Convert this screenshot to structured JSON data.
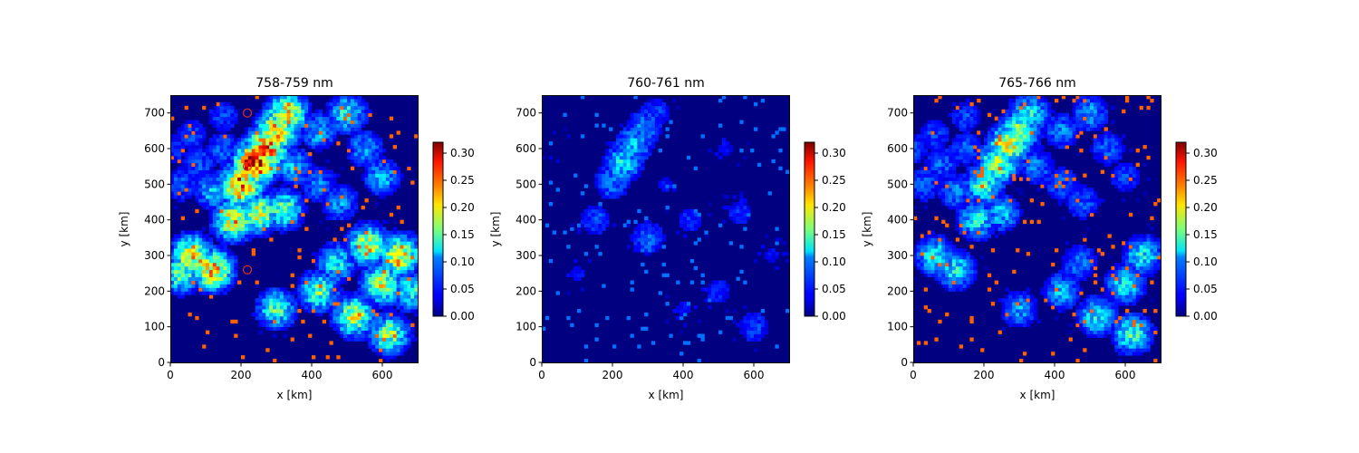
{
  "chart_data": [
    {
      "type": "heatmap",
      "title": "758-759 nm",
      "xlabel": "x [km]",
      "ylabel": "y [km]",
      "xlim": [
        0,
        700
      ],
      "ylim": [
        0,
        750
      ],
      "x_ticks": [
        "0",
        "200",
        "400",
        "600"
      ],
      "y_ticks": [
        "0",
        "100",
        "200",
        "300",
        "400",
        "500",
        "600",
        "700"
      ],
      "colorbar": {
        "min": 0.0,
        "max": 0.32,
        "colormap": "jet",
        "ticks": [
          "0.00",
          "0.05",
          "0.10",
          "0.15",
          "0.20",
          "0.25",
          "0.30"
        ]
      },
      "markers": [
        {
          "x": 218,
          "y": 700,
          "shape": "circle",
          "color": "#e0301e"
        },
        {
          "x": 218,
          "y": 550,
          "shape": "circle",
          "color": "#e0301e"
        },
        {
          "x": 218,
          "y": 260,
          "shape": "circle",
          "color": "#e0301e"
        }
      ],
      "features": [
        {
          "x": 0,
          "y": 600,
          "value": 0.06
        },
        {
          "x": 60,
          "y": 640,
          "value": 0.06
        },
        {
          "x": 150,
          "y": 690,
          "value": 0.06
        },
        {
          "x": 80,
          "y": 560,
          "value": 0.07
        },
        {
          "x": 150,
          "y": 600,
          "value": 0.07
        },
        {
          "x": 30,
          "y": 500,
          "value": 0.07
        },
        {
          "x": 120,
          "y": 480,
          "value": 0.1
        },
        {
          "x": 350,
          "y": 550,
          "value": 0.1
        },
        {
          "x": 420,
          "y": 500,
          "value": 0.08
        },
        {
          "x": 480,
          "y": 450,
          "value": 0.09
        },
        {
          "x": 420,
          "y": 650,
          "value": 0.1
        },
        {
          "x": 500,
          "y": 700,
          "value": 0.12
        },
        {
          "x": 550,
          "y": 600,
          "value": 0.09
        },
        {
          "x": 600,
          "y": 520,
          "value": 0.1
        },
        {
          "x": 240,
          "y": 560,
          "value": 0.3
        },
        {
          "x": 270,
          "y": 600,
          "value": 0.26
        },
        {
          "x": 300,
          "y": 650,
          "value": 0.22
        },
        {
          "x": 200,
          "y": 500,
          "value": 0.25
        },
        {
          "x": 330,
          "y": 700,
          "value": 0.2
        },
        {
          "x": 250,
          "y": 420,
          "value": 0.18
        },
        {
          "x": 320,
          "y": 430,
          "value": 0.15
        },
        {
          "x": 180,
          "y": 400,
          "value": 0.2
        },
        {
          "x": 60,
          "y": 300,
          "value": 0.2
        },
        {
          "x": 120,
          "y": 260,
          "value": 0.22
        },
        {
          "x": 30,
          "y": 250,
          "value": 0.15
        },
        {
          "x": 420,
          "y": 200,
          "value": 0.15
        },
        {
          "x": 520,
          "y": 130,
          "value": 0.18
        },
        {
          "x": 620,
          "y": 80,
          "value": 0.16
        },
        {
          "x": 600,
          "y": 220,
          "value": 0.18
        },
        {
          "x": 650,
          "y": 300,
          "value": 0.2
        },
        {
          "x": 470,
          "y": 280,
          "value": 0.12
        },
        {
          "x": 300,
          "y": 150,
          "value": 0.14
        },
        {
          "x": 560,
          "y": 330,
          "value": 0.18
        },
        {
          "x": 680,
          "y": 200,
          "value": 0.13
        }
      ]
    },
    {
      "type": "heatmap",
      "title": "760-761 nm",
      "xlabel": "x [km]",
      "ylabel": "y [km]",
      "xlim": [
        0,
        700
      ],
      "ylim": [
        0,
        750
      ],
      "x_ticks": [
        "0",
        "200",
        "400",
        "600"
      ],
      "y_ticks": [
        "0",
        "100",
        "200",
        "300",
        "400",
        "500",
        "600",
        "700"
      ],
      "colorbar": {
        "min": 0.0,
        "max": 0.32,
        "colormap": "jet",
        "ticks": [
          "0.00",
          "0.05",
          "0.10",
          "0.15",
          "0.20",
          "0.25",
          "0.30"
        ]
      },
      "markers": [],
      "features": [
        {
          "x": 230,
          "y": 560,
          "value": 0.11
        },
        {
          "x": 260,
          "y": 610,
          "value": 0.1
        },
        {
          "x": 290,
          "y": 660,
          "value": 0.08
        },
        {
          "x": 200,
          "y": 510,
          "value": 0.08
        },
        {
          "x": 320,
          "y": 700,
          "value": 0.06
        },
        {
          "x": 150,
          "y": 400,
          "value": 0.06
        },
        {
          "x": 300,
          "y": 350,
          "value": 0.07
        },
        {
          "x": 420,
          "y": 400,
          "value": 0.05
        },
        {
          "x": 560,
          "y": 420,
          "value": 0.05
        },
        {
          "x": 500,
          "y": 200,
          "value": 0.05
        },
        {
          "x": 600,
          "y": 100,
          "value": 0.06
        },
        {
          "x": 400,
          "y": 150,
          "value": 0.04
        },
        {
          "x": 100,
          "y": 250,
          "value": 0.04
        },
        {
          "x": 650,
          "y": 300,
          "value": 0.04
        },
        {
          "x": 520,
          "y": 600,
          "value": 0.04
        },
        {
          "x": 350,
          "y": 500,
          "value": 0.04
        },
        {
          "x": 50,
          "y": 600,
          "value": 0.03
        }
      ]
    },
    {
      "type": "heatmap",
      "title": "765-766 nm",
      "xlabel": "x [km]",
      "ylabel": "y [km]",
      "xlim": [
        0,
        700
      ],
      "ylim": [
        0,
        750
      ],
      "x_ticks": [
        "0",
        "200",
        "400",
        "600"
      ],
      "y_ticks": [
        "0",
        "100",
        "200",
        "300",
        "400",
        "500",
        "600",
        "700"
      ],
      "colorbar": {
        "min": 0.0,
        "max": 0.32,
        "colormap": "jet",
        "ticks": [
          "0.00",
          "0.05",
          "0.10",
          "0.15",
          "0.20",
          "0.25",
          "0.30"
        ]
      },
      "markers": [],
      "features": [
        {
          "x": 0,
          "y": 600,
          "value": 0.06
        },
        {
          "x": 60,
          "y": 640,
          "value": 0.06
        },
        {
          "x": 150,
          "y": 690,
          "value": 0.06
        },
        {
          "x": 80,
          "y": 560,
          "value": 0.07
        },
        {
          "x": 150,
          "y": 600,
          "value": 0.07
        },
        {
          "x": 30,
          "y": 500,
          "value": 0.07
        },
        {
          "x": 120,
          "y": 480,
          "value": 0.08
        },
        {
          "x": 350,
          "y": 550,
          "value": 0.08
        },
        {
          "x": 420,
          "y": 500,
          "value": 0.07
        },
        {
          "x": 480,
          "y": 450,
          "value": 0.07
        },
        {
          "x": 420,
          "y": 650,
          "value": 0.08
        },
        {
          "x": 500,
          "y": 700,
          "value": 0.09
        },
        {
          "x": 550,
          "y": 600,
          "value": 0.07
        },
        {
          "x": 600,
          "y": 520,
          "value": 0.06
        },
        {
          "x": 240,
          "y": 560,
          "value": 0.17
        },
        {
          "x": 270,
          "y": 610,
          "value": 0.19
        },
        {
          "x": 300,
          "y": 650,
          "value": 0.16
        },
        {
          "x": 200,
          "y": 500,
          "value": 0.14
        },
        {
          "x": 330,
          "y": 700,
          "value": 0.12
        },
        {
          "x": 250,
          "y": 420,
          "value": 0.1
        },
        {
          "x": 180,
          "y": 400,
          "value": 0.12
        },
        {
          "x": 60,
          "y": 300,
          "value": 0.12
        },
        {
          "x": 120,
          "y": 260,
          "value": 0.12
        },
        {
          "x": 420,
          "y": 200,
          "value": 0.1
        },
        {
          "x": 520,
          "y": 130,
          "value": 0.12
        },
        {
          "x": 620,
          "y": 80,
          "value": 0.14
        },
        {
          "x": 600,
          "y": 220,
          "value": 0.12
        },
        {
          "x": 650,
          "y": 300,
          "value": 0.12
        },
        {
          "x": 470,
          "y": 280,
          "value": 0.08
        },
        {
          "x": 300,
          "y": 150,
          "value": 0.09
        }
      ]
    }
  ]
}
